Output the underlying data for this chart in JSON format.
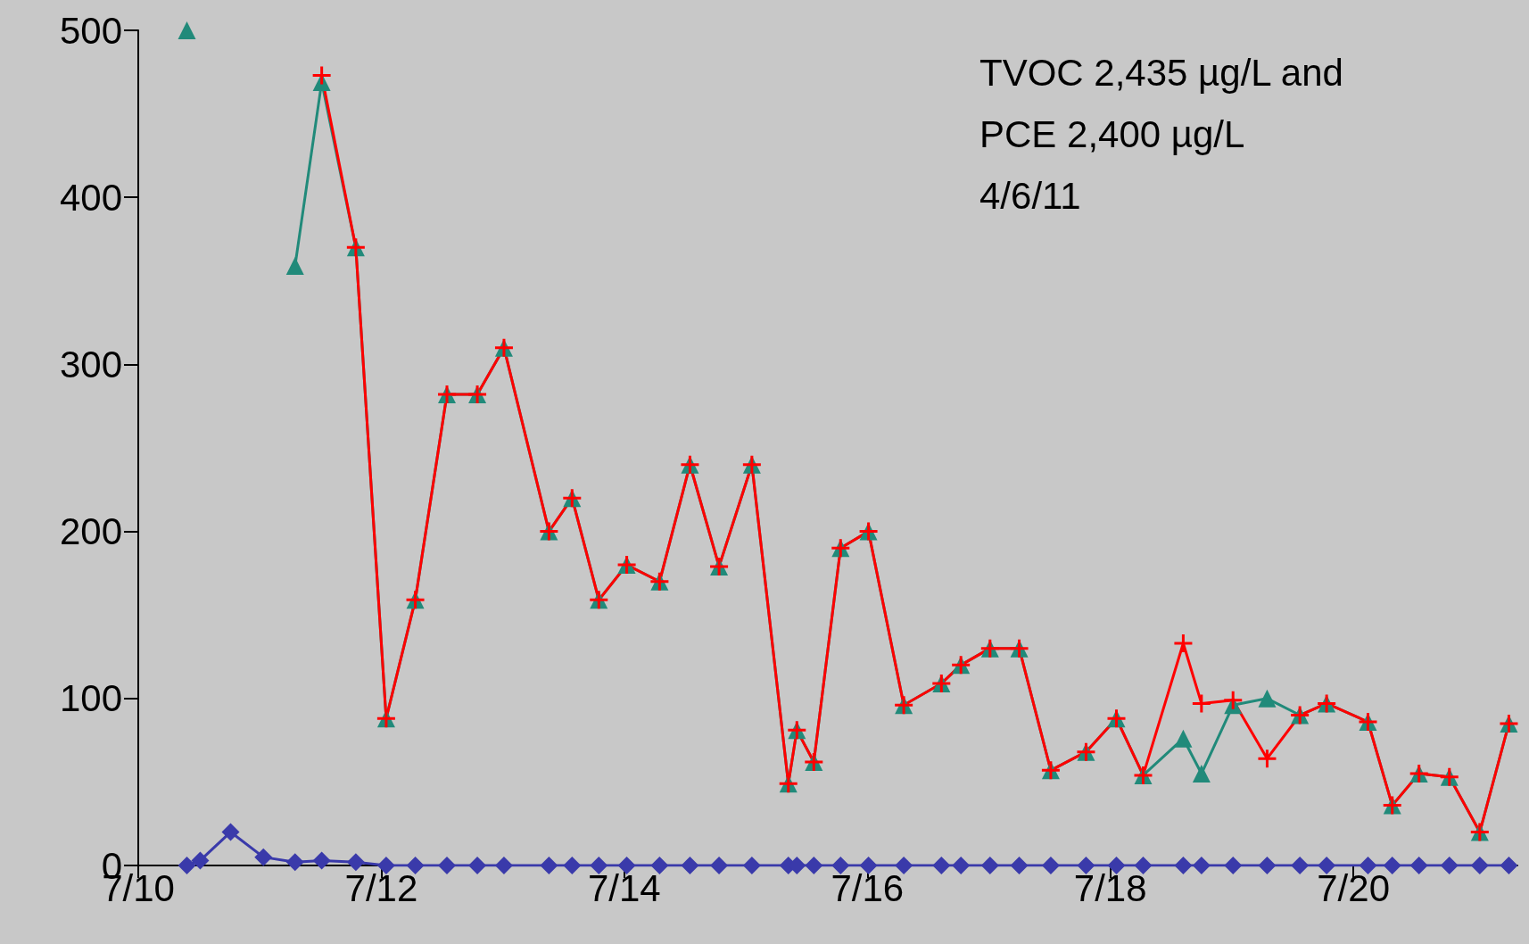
{
  "chart_data": {
    "type": "line",
    "x": [
      "--07-10T09:36",
      "--07-10T12:14",
      "--07-10T18:14",
      "--07-11T00:43",
      "--07-11T06:58",
      "--07-11T12:14",
      "--07-11T18:58",
      "--07-12T00:58",
      "--07-12T06:43",
      "--07-12T12:58",
      "--07-12T18:58",
      "--07-13T00:14",
      "--07-13T09:07",
      "--07-13T13:41",
      "--07-13T18:58",
      "--07-14T00:29",
      "--07-14T06:58",
      "--07-14T12:58",
      "--07-14T18:43",
      "--07-15T01:12",
      "--07-15T08:24",
      "--07-15T10:05",
      "--07-15T13:26",
      "--07-15T18:43",
      "--07-16T00:14",
      "--07-16T07:12",
      "--07-16T14:38",
      "--07-16T18:29",
      "--07-17T00:14",
      "--07-17T06:00",
      "--07-17T12:14",
      "--07-17T19:12",
      "--07-18T01:12",
      "--07-18T06:29",
      "--07-18T14:24",
      "--07-18T18:00",
      "--07-19T00:14",
      "--07-19T06:58",
      "--07-19T13:26",
      "--07-19T18:43",
      "--07-20T02:53",
      "--07-20T07:41",
      "--07-20T12:58",
      "--07-20T18:58",
      "--07-21T00:58",
      "--07-21T06:43"
    ],
    "series": [
      {
        "color": "#3a3aaa",
        "marker": "diamond",
        "values": [
          0,
          3,
          20,
          5,
          2,
          3,
          2,
          0,
          0,
          0,
          0,
          0,
          0,
          0,
          0,
          0,
          0,
          0,
          0,
          0,
          0,
          0,
          0,
          0,
          0,
          0,
          0,
          0,
          0,
          0,
          0,
          0,
          0,
          0,
          0,
          0,
          0,
          0,
          0,
          0,
          0,
          0,
          0,
          0,
          0,
          0
        ]
      },
      {
        "color": "#218a7a",
        "marker": "triangle",
        "values": [
          500,
          null,
          null,
          null,
          359,
          469,
          370,
          88,
          159,
          282,
          282,
          310,
          200,
          220,
          159,
          180,
          170,
          240,
          179,
          240,
          49,
          81,
          62,
          190,
          200,
          96,
          109,
          120,
          130,
          130,
          57,
          68,
          88,
          54,
          76,
          55,
          96,
          100,
          90,
          97,
          86,
          36,
          55,
          53,
          20,
          85
        ]
      },
      {
        "color": "#ff0000",
        "marker": "cross",
        "values": [
          null,
          null,
          null,
          null,
          null,
          473,
          370,
          88,
          159,
          282,
          282,
          310,
          200,
          220,
          159,
          180,
          170,
          240,
          179,
          240,
          49,
          81,
          62,
          190,
          200,
          96,
          109,
          120,
          130,
          130,
          57,
          68,
          88,
          54,
          133,
          97,
          99,
          64,
          90,
          97,
          86,
          36,
          55,
          53,
          20,
          85
        ]
      }
    ],
    "xlim": [
      "--07-10",
      "--07-21T08:24"
    ],
    "xticks": [
      {
        "value": "--07-10",
        "label": "7/10"
      },
      {
        "value": "--07-12",
        "label": "7/12"
      },
      {
        "value": "--07-14",
        "label": "7/14"
      },
      {
        "value": "--07-16",
        "label": "7/16"
      },
      {
        "value": "--07-18",
        "label": "7/18"
      },
      {
        "value": "--07-20",
        "label": "7/20"
      }
    ],
    "ylim": [
      0,
      500
    ],
    "yticks": [
      0,
      100,
      200,
      300,
      400,
      500
    ],
    "grid": false,
    "line_style": "solid",
    "annotations": [
      "TVOC 2,435 µg/L and",
      "PCE 2,400 µg/L",
      "4/6/11"
    ]
  }
}
